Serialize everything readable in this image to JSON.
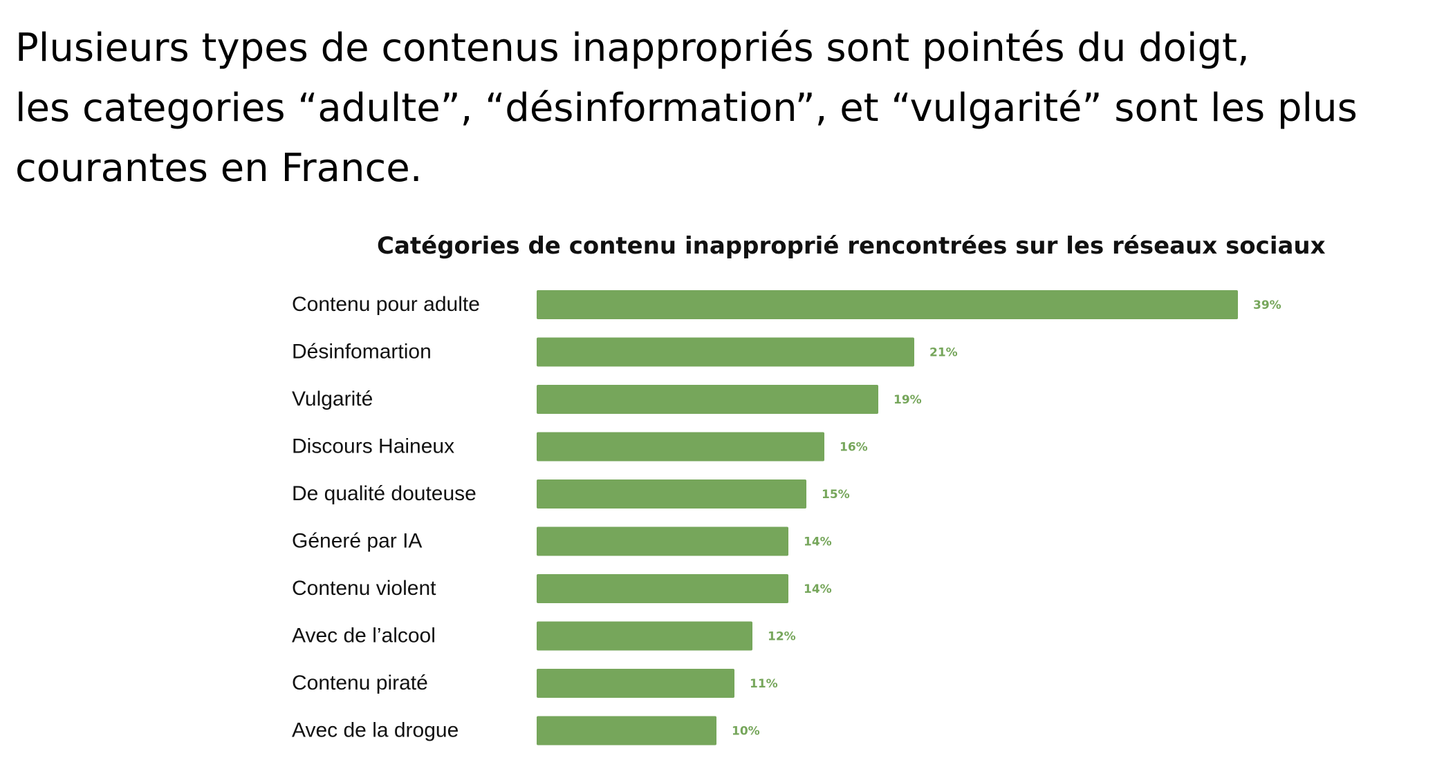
{
  "slide": {
    "headline_lines": [
      "Plusieurs types de contenus inappropriés sont pointés du doigt,",
      "les categories “adulte”, “désinformation”, et “vulgarité” sont les plus",
      "courantes en France."
    ]
  },
  "colors": {
    "bar": "#76a65b",
    "value_label": "#76a65b",
    "text": "#111111"
  },
  "chart_data": {
    "type": "bar",
    "orientation": "horizontal",
    "title": "Catégories de contenu inapproprié rencontrées sur les réseaux sociaux",
    "xlabel": "",
    "ylabel": "",
    "xlim": [
      0,
      39
    ],
    "grid": false,
    "categories": [
      "Contenu pour adulte",
      "Désinfomartion",
      "Vulgarité",
      "Discours Haineux",
      "De qualité douteuse",
      "Géneré par IA",
      "Contenu violent",
      "Avec de l’alcool",
      "Contenu piraté",
      "Avec de la drogue"
    ],
    "values": [
      39,
      21,
      19,
      16,
      15,
      14,
      14,
      12,
      11,
      10
    ],
    "value_labels": [
      "39%",
      "21%",
      "19%",
      "16%",
      "15%",
      "14%",
      "14%",
      "12%",
      "11%",
      "10%"
    ]
  }
}
